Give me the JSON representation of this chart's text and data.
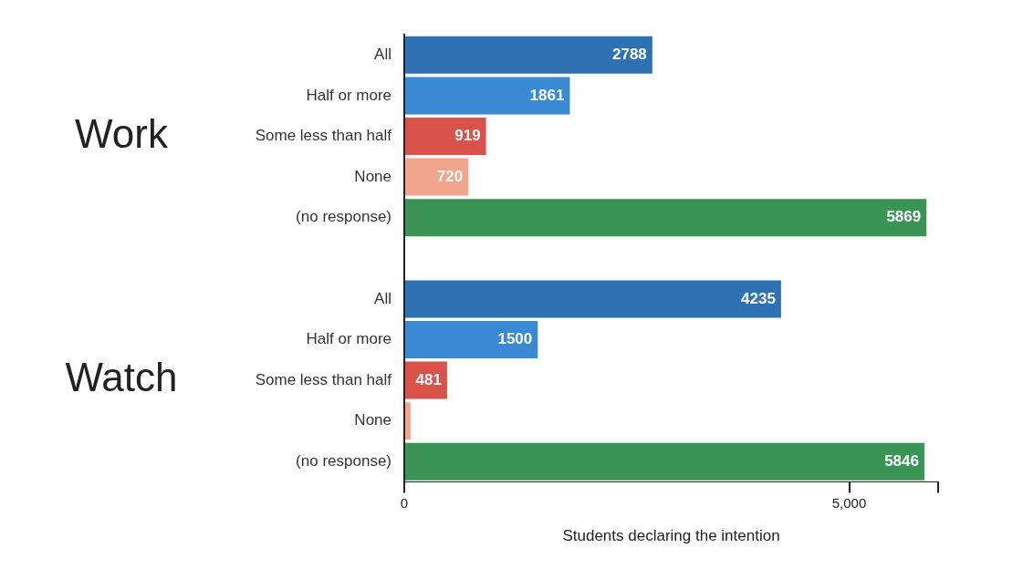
{
  "chart_data": {
    "type": "bar",
    "orientation": "horizontal",
    "categories": [
      "All",
      "Half or more",
      "Some less than half",
      "None",
      "(no response)",
      null,
      "All",
      "Half or more",
      "Some less than half",
      "None",
      "(no response)"
    ],
    "values": [
      2788,
      1861,
      919,
      720,
      5869,
      null,
      4235,
      1500,
      481,
      70,
      5846
    ],
    "colors": [
      "#2f72b4",
      "#3a8ad3",
      "#d9534a",
      "#f2a48c",
      "#3a9455",
      null,
      "#2f72b4",
      "#3a8ad3",
      "#d9534a",
      "#f2a48c",
      "#3a9455"
    ],
    "value_labels": [
      "2788",
      "1861",
      "919",
      "720",
      "5869",
      null,
      "4235",
      "1500",
      "481",
      null,
      "5846"
    ],
    "xlim": [
      0,
      6000
    ],
    "xticks": [
      0,
      {
        "value": 5000,
        "label": "5,000"
      },
      {
        "value": 6000,
        "label": null
      }
    ],
    "xlabel": "Students declaring the intention",
    "annotations": [
      "Work",
      "Watch"
    ],
    "grid": false,
    "legend": false
  }
}
